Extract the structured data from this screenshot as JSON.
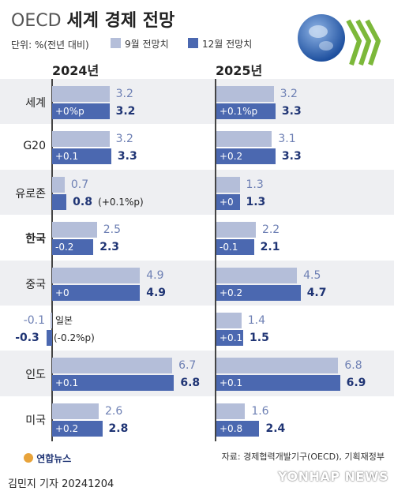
{
  "header": {
    "title_light": "OECD",
    "title_bold": "세계 경제 전망",
    "unit": "단위: %(전년 대비)",
    "legend_a": "9월 전망치",
    "legend_b": "12월 전망치"
  },
  "colors": {
    "sept": "#b4bed9",
    "dec": "#4b68b0",
    "band": "#eeeff2"
  },
  "chart_data": {
    "type": "bar",
    "orientation": "horizontal",
    "panels": [
      "2024년",
      "2025년"
    ],
    "categories": [
      "세계",
      "G20",
      "유로존",
      "한국",
      "중국",
      "일본",
      "인도",
      "미국"
    ],
    "series": [
      {
        "name": "9월 전망치",
        "y2024": [
          3.2,
          3.2,
          0.7,
          2.5,
          4.9,
          -0.1,
          6.7,
          2.6
        ],
        "y2025": [
          3.2,
          3.1,
          1.3,
          2.2,
          4.5,
          1.4,
          6.8,
          1.6
        ]
      },
      {
        "name": "12월 전망치",
        "y2024": [
          3.2,
          3.3,
          0.8,
          2.3,
          4.9,
          -0.3,
          6.8,
          2.8
        ],
        "y2025": [
          3.3,
          3.3,
          1.3,
          2.1,
          4.7,
          1.5,
          6.9,
          2.4
        ]
      }
    ],
    "change_2024": [
      "+0%p",
      "+0.1",
      "(+0.1%p)",
      "-0.2",
      "+0",
      "(-0.2%p)",
      "+0.1",
      "+0.2"
    ],
    "change_2025": [
      "+0.1%p",
      "+0.2",
      "+0",
      "-0.1",
      "+0.2",
      "+0.1",
      "+0.1",
      "+0.8"
    ]
  },
  "footer": {
    "source": "자료: 경제협력개발기구(OECD), 기획재정부",
    "agency": "연합뉴스",
    "author": "김민지 기자  20241204",
    "watermark": "YONHAP NEWS"
  }
}
